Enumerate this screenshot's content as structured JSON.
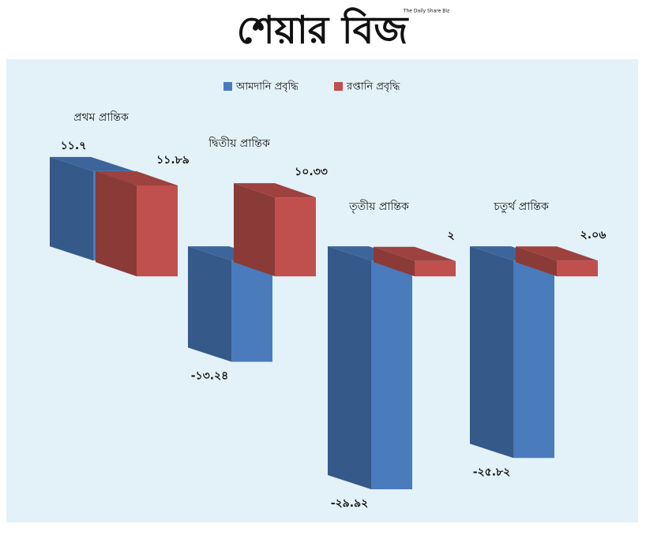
{
  "header": {
    "title": "শেয়ার বিজ",
    "tagline": "The Daily Share Biz"
  },
  "chart_data": {
    "type": "bar3d",
    "categories": [
      "প্রথম প্রান্তিক",
      "দ্বিতীয় প্রান্তিক",
      "তৃতীয় প্রান্তিক",
      "চতুর্থ প্রান্তিক"
    ],
    "series": [
      {
        "name": "আমদানি প্রবৃদ্ধি",
        "color": "#4a7bbd",
        "values": [
          11.7,
          -13.24,
          -29.92,
          -25.82
        ],
        "value_labels": [
          "১১.৭",
          "-১৩.২৪",
          "-২৯.৯২",
          "-২৫.৮২"
        ]
      },
      {
        "name": "রপ্তানি প্রবৃদ্ধি",
        "color": "#c0504d",
        "values": [
          11.89,
          10.33,
          2,
          2.06
        ],
        "value_labels": [
          "১১.৮৯",
          "১০.৩৩",
          "২",
          "২.০৬"
        ]
      }
    ]
  }
}
